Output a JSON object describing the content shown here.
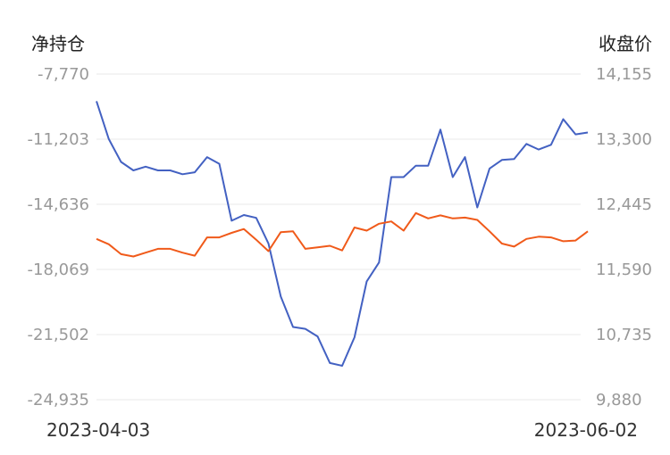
{
  "chart_data": {
    "type": "line",
    "left_axis_title": "净持仓",
    "right_axis_title": "收盘价",
    "left_ticks": [
      "-7,770",
      "-11,203",
      "-14,636",
      "-18,069",
      "-21,502",
      "-24,935"
    ],
    "right_ticks": [
      "14,155",
      "13,300",
      "12,445",
      "11,590",
      "10,735",
      "9,880"
    ],
    "left_ylim": [
      -24935,
      -7770
    ],
    "right_ylim": [
      9880,
      14155
    ],
    "x_start_label": "2023-04-03",
    "x_end_label": "2023-06-02",
    "grid": true,
    "series": [
      {
        "axis": "left",
        "color": "#4361c2",
        "values": [
          -9200,
          -11200,
          -12400,
          -12850,
          -12650,
          -12850,
          -12850,
          -13050,
          -12950,
          -12150,
          -12500,
          -15500,
          -15200,
          -15350,
          -16700,
          -19500,
          -21100,
          -21200,
          -21600,
          -23000,
          -23150,
          -21650,
          -18700,
          -17700,
          -13200,
          -13200,
          -12600,
          -12600,
          -10700,
          -13200,
          -12150,
          -14800,
          -12750,
          -12300,
          -12250,
          -11450,
          -11750,
          -11500,
          -10150,
          -10950,
          -10850
        ]
      },
      {
        "axis": "right",
        "color": "#f05a1a",
        "values": [
          11990,
          11920,
          11790,
          11760,
          11810,
          11860,
          11860,
          11810,
          11770,
          12010,
          12010,
          12070,
          12120,
          11980,
          11830,
          12080,
          12090,
          11860,
          11880,
          11900,
          11840,
          12140,
          12100,
          12190,
          12220,
          12100,
          12330,
          12260,
          12300,
          12260,
          12270,
          12240,
          12090,
          11930,
          11890,
          11990,
          12020,
          12010,
          11960,
          11970,
          12090
        ]
      }
    ]
  }
}
